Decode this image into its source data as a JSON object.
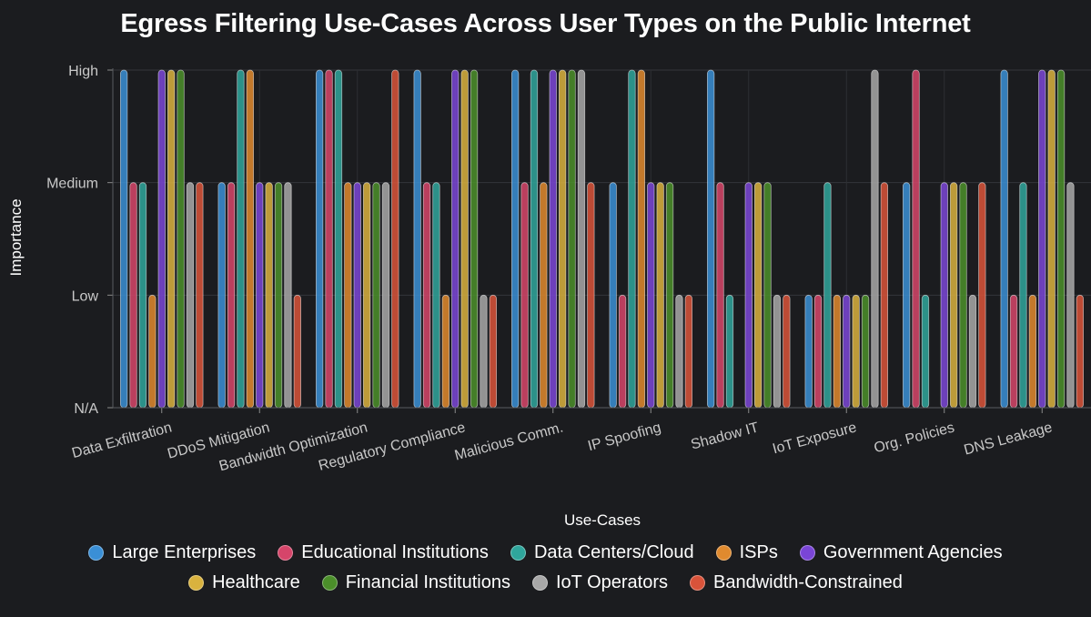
{
  "chart_data": {
    "type": "bar",
    "title": "Egress Filtering Use-Cases Across User Types on the Public Internet",
    "xlabel": "Use-Cases",
    "ylabel": "Importance",
    "y_ticks": [
      "N/A",
      "Low",
      "Medium",
      "High"
    ],
    "ylim": [
      0,
      3
    ],
    "categories": [
      "Data Exfiltration",
      "DDoS Mitigation",
      "Bandwidth Optimization",
      "Regulatory Compliance",
      "Malicious Comm.",
      "IP Spoofing",
      "Shadow IT",
      "IoT Exposure",
      "Org. Policies",
      "DNS Leakage"
    ],
    "series": [
      {
        "name": "Large Enterprises",
        "color": "#3a8fd6",
        "values": [
          3,
          2,
          3,
          3,
          3,
          2,
          3,
          1,
          2,
          3
        ]
      },
      {
        "name": "Educational Institutions",
        "color": "#d6456a",
        "values": [
          2,
          2,
          3,
          2,
          2,
          1,
          2,
          1,
          3,
          1
        ]
      },
      {
        "name": "Data Centers/Cloud",
        "color": "#2fa69c",
        "values": [
          2,
          3,
          3,
          2,
          3,
          3,
          1,
          2,
          1,
          2
        ]
      },
      {
        "name": "ISPs",
        "color": "#e08a2e",
        "values": [
          1,
          3,
          2,
          1,
          2,
          3,
          0,
          1,
          0,
          1
        ]
      },
      {
        "name": "Government Agencies",
        "color": "#7a45d6",
        "values": [
          3,
          2,
          2,
          3,
          3,
          2,
          2,
          1,
          2,
          3
        ]
      },
      {
        "name": "Healthcare",
        "color": "#d9b23e",
        "values": [
          3,
          2,
          2,
          3,
          3,
          2,
          2,
          1,
          2,
          3
        ]
      },
      {
        "name": "Financial Institutions",
        "color": "#4b8f2a",
        "values": [
          3,
          2,
          2,
          3,
          3,
          2,
          2,
          1,
          2,
          3
        ]
      },
      {
        "name": "IoT Operators",
        "color": "#a8a8a8",
        "values": [
          2,
          2,
          2,
          1,
          3,
          1,
          1,
          3,
          1,
          2
        ]
      },
      {
        "name": "Bandwidth-Constrained",
        "color": "#d9533a",
        "values": [
          2,
          1,
          3,
          1,
          2,
          1,
          1,
          2,
          2,
          1
        ]
      }
    ],
    "grid": true,
    "legend_position": "bottom-center"
  }
}
